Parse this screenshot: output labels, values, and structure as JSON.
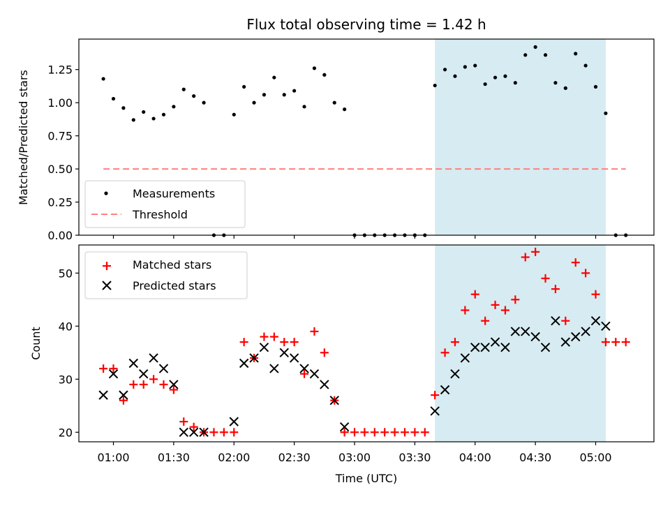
{
  "title": "Flux total observing time = 1.42 h",
  "xlabel": "Time (UTC)",
  "x_ticks": [
    "01:00",
    "01:30",
    "02:00",
    "02:30",
    "03:00",
    "03:30",
    "04:00",
    "04:30",
    "05:00"
  ],
  "colors": {
    "measurement": "#000000",
    "threshold": "#ff7f7f",
    "matched": "#ff0000",
    "predicted": "#000000",
    "highlight": "#add8e6"
  },
  "chart_data": [
    {
      "type": "scatter",
      "name": "top",
      "ylabel": "Matched/Predicted stars",
      "y_ticks": [
        "0.00",
        "0.25",
        "0.50",
        "0.75",
        "1.00",
        "1.25"
      ],
      "ylim": [
        0.0,
        1.48
      ],
      "x_unit": "time (UTC)",
      "highlight_span": [
        "03:40",
        "05:05"
      ],
      "series": [
        {
          "name": "Measurements",
          "marker": "dot",
          "x": [
            "00:55",
            "01:00",
            "01:05",
            "01:10",
            "01:15",
            "01:20",
            "01:25",
            "01:30",
            "01:35",
            "01:40",
            "01:45",
            "01:50",
            "01:55",
            "02:00",
            "02:05",
            "02:10",
            "02:15",
            "02:20",
            "02:25",
            "02:30",
            "02:35",
            "02:40",
            "02:45",
            "02:50",
            "02:55",
            "03:00",
            "03:05",
            "03:10",
            "03:15",
            "03:20",
            "03:25",
            "03:30",
            "03:35",
            "03:40",
            "03:45",
            "03:50",
            "03:55",
            "04:00",
            "04:05",
            "04:10",
            "04:15",
            "04:20",
            "04:25",
            "04:30",
            "04:35",
            "04:40",
            "04:45",
            "04:50",
            "04:55",
            "05:00",
            "05:05",
            "05:10",
            "05:15"
          ],
          "y": [
            1.18,
            1.03,
            0.96,
            0.87,
            0.93,
            0.88,
            0.91,
            0.97,
            1.1,
            1.05,
            1.0,
            0.0,
            0.0,
            0.91,
            1.12,
            1.0,
            1.06,
            1.19,
            1.06,
            1.09,
            0.97,
            1.26,
            1.21,
            1.0,
            0.95,
            0.0,
            0.0,
            0.0,
            0.0,
            0.0,
            0.0,
            0.0,
            0.0,
            1.13,
            1.25,
            1.2,
            1.27,
            1.28,
            1.14,
            1.19,
            1.2,
            1.15,
            1.36,
            1.42,
            1.36,
            1.15,
            1.11,
            1.37,
            1.28,
            1.12,
            0.92,
            0.0,
            0.0
          ]
        },
        {
          "name": "Threshold",
          "style": "dashed",
          "x": [
            "00:55",
            "05:15"
          ],
          "y": [
            0.5,
            0.5
          ]
        }
      ],
      "legend": {
        "placement": "lower-left",
        "entries": [
          "Measurements",
          "Threshold"
        ]
      }
    },
    {
      "type": "scatter",
      "name": "bottom",
      "ylabel": "Count",
      "y_ticks": [
        "20",
        "30",
        "40",
        "50"
      ],
      "ylim": [
        18.2,
        55.3
      ],
      "x_unit": "time (UTC)",
      "highlight_span": [
        "03:40",
        "05:05"
      ],
      "series": [
        {
          "name": "Matched stars",
          "marker": "plus",
          "x": [
            "00:55",
            "01:00",
            "01:05",
            "01:10",
            "01:15",
            "01:20",
            "01:25",
            "01:30",
            "01:35",
            "01:40",
            "01:45",
            "01:50",
            "01:55",
            "02:00",
            "02:05",
            "02:10",
            "02:15",
            "02:20",
            "02:25",
            "02:30",
            "02:35",
            "02:40",
            "02:45",
            "02:50",
            "02:55",
            "03:00",
            "03:05",
            "03:10",
            "03:15",
            "03:20",
            "03:25",
            "03:30",
            "03:35",
            "03:40",
            "03:45",
            "03:50",
            "03:55",
            "04:00",
            "04:05",
            "04:10",
            "04:15",
            "04:20",
            "04:25",
            "04:30",
            "04:35",
            "04:40",
            "04:45",
            "04:50",
            "04:55",
            "05:00",
            "05:05",
            "05:10",
            "05:15"
          ],
          "y": [
            32,
            32,
            26,
            29,
            29,
            30,
            29,
            28,
            22,
            21,
            20,
            20,
            20,
            20,
            37,
            34,
            38,
            38,
            37,
            37,
            31,
            39,
            35,
            26,
            20,
            20,
            20,
            20,
            20,
            20,
            20,
            20,
            20,
            27,
            35,
            37,
            43,
            46,
            41,
            44,
            43,
            45,
            53,
            54,
            49,
            47,
            41,
            52,
            50,
            46,
            37,
            37,
            37
          ]
        },
        {
          "name": "Predicted stars",
          "marker": "x",
          "x": [
            "00:55",
            "01:00",
            "01:05",
            "01:10",
            "01:15",
            "01:20",
            "01:25",
            "01:30",
            "01:35",
            "01:40",
            "01:45",
            "02:00",
            "02:05",
            "02:10",
            "02:15",
            "02:20",
            "02:25",
            "02:30",
            "02:35",
            "02:40",
            "02:45",
            "02:50",
            "02:55",
            "03:40",
            "03:45",
            "03:50",
            "03:55",
            "04:00",
            "04:05",
            "04:10",
            "04:15",
            "04:20",
            "04:25",
            "04:30",
            "04:35",
            "04:40",
            "04:45",
            "04:50",
            "04:55",
            "05:00",
            "05:05"
          ],
          "y": [
            27,
            31,
            27,
            33,
            31,
            34,
            32,
            29,
            20,
            20,
            20,
            22,
            33,
            34,
            36,
            32,
            35,
            34,
            32,
            31,
            29,
            26,
            21,
            24,
            28,
            31,
            34,
            36,
            36,
            37,
            36,
            39,
            39,
            38,
            36,
            41,
            37,
            38,
            39,
            41,
            40
          ]
        }
      ],
      "legend": {
        "placement": "upper-left",
        "entries": [
          "Matched stars",
          "Predicted stars"
        ]
      }
    }
  ]
}
